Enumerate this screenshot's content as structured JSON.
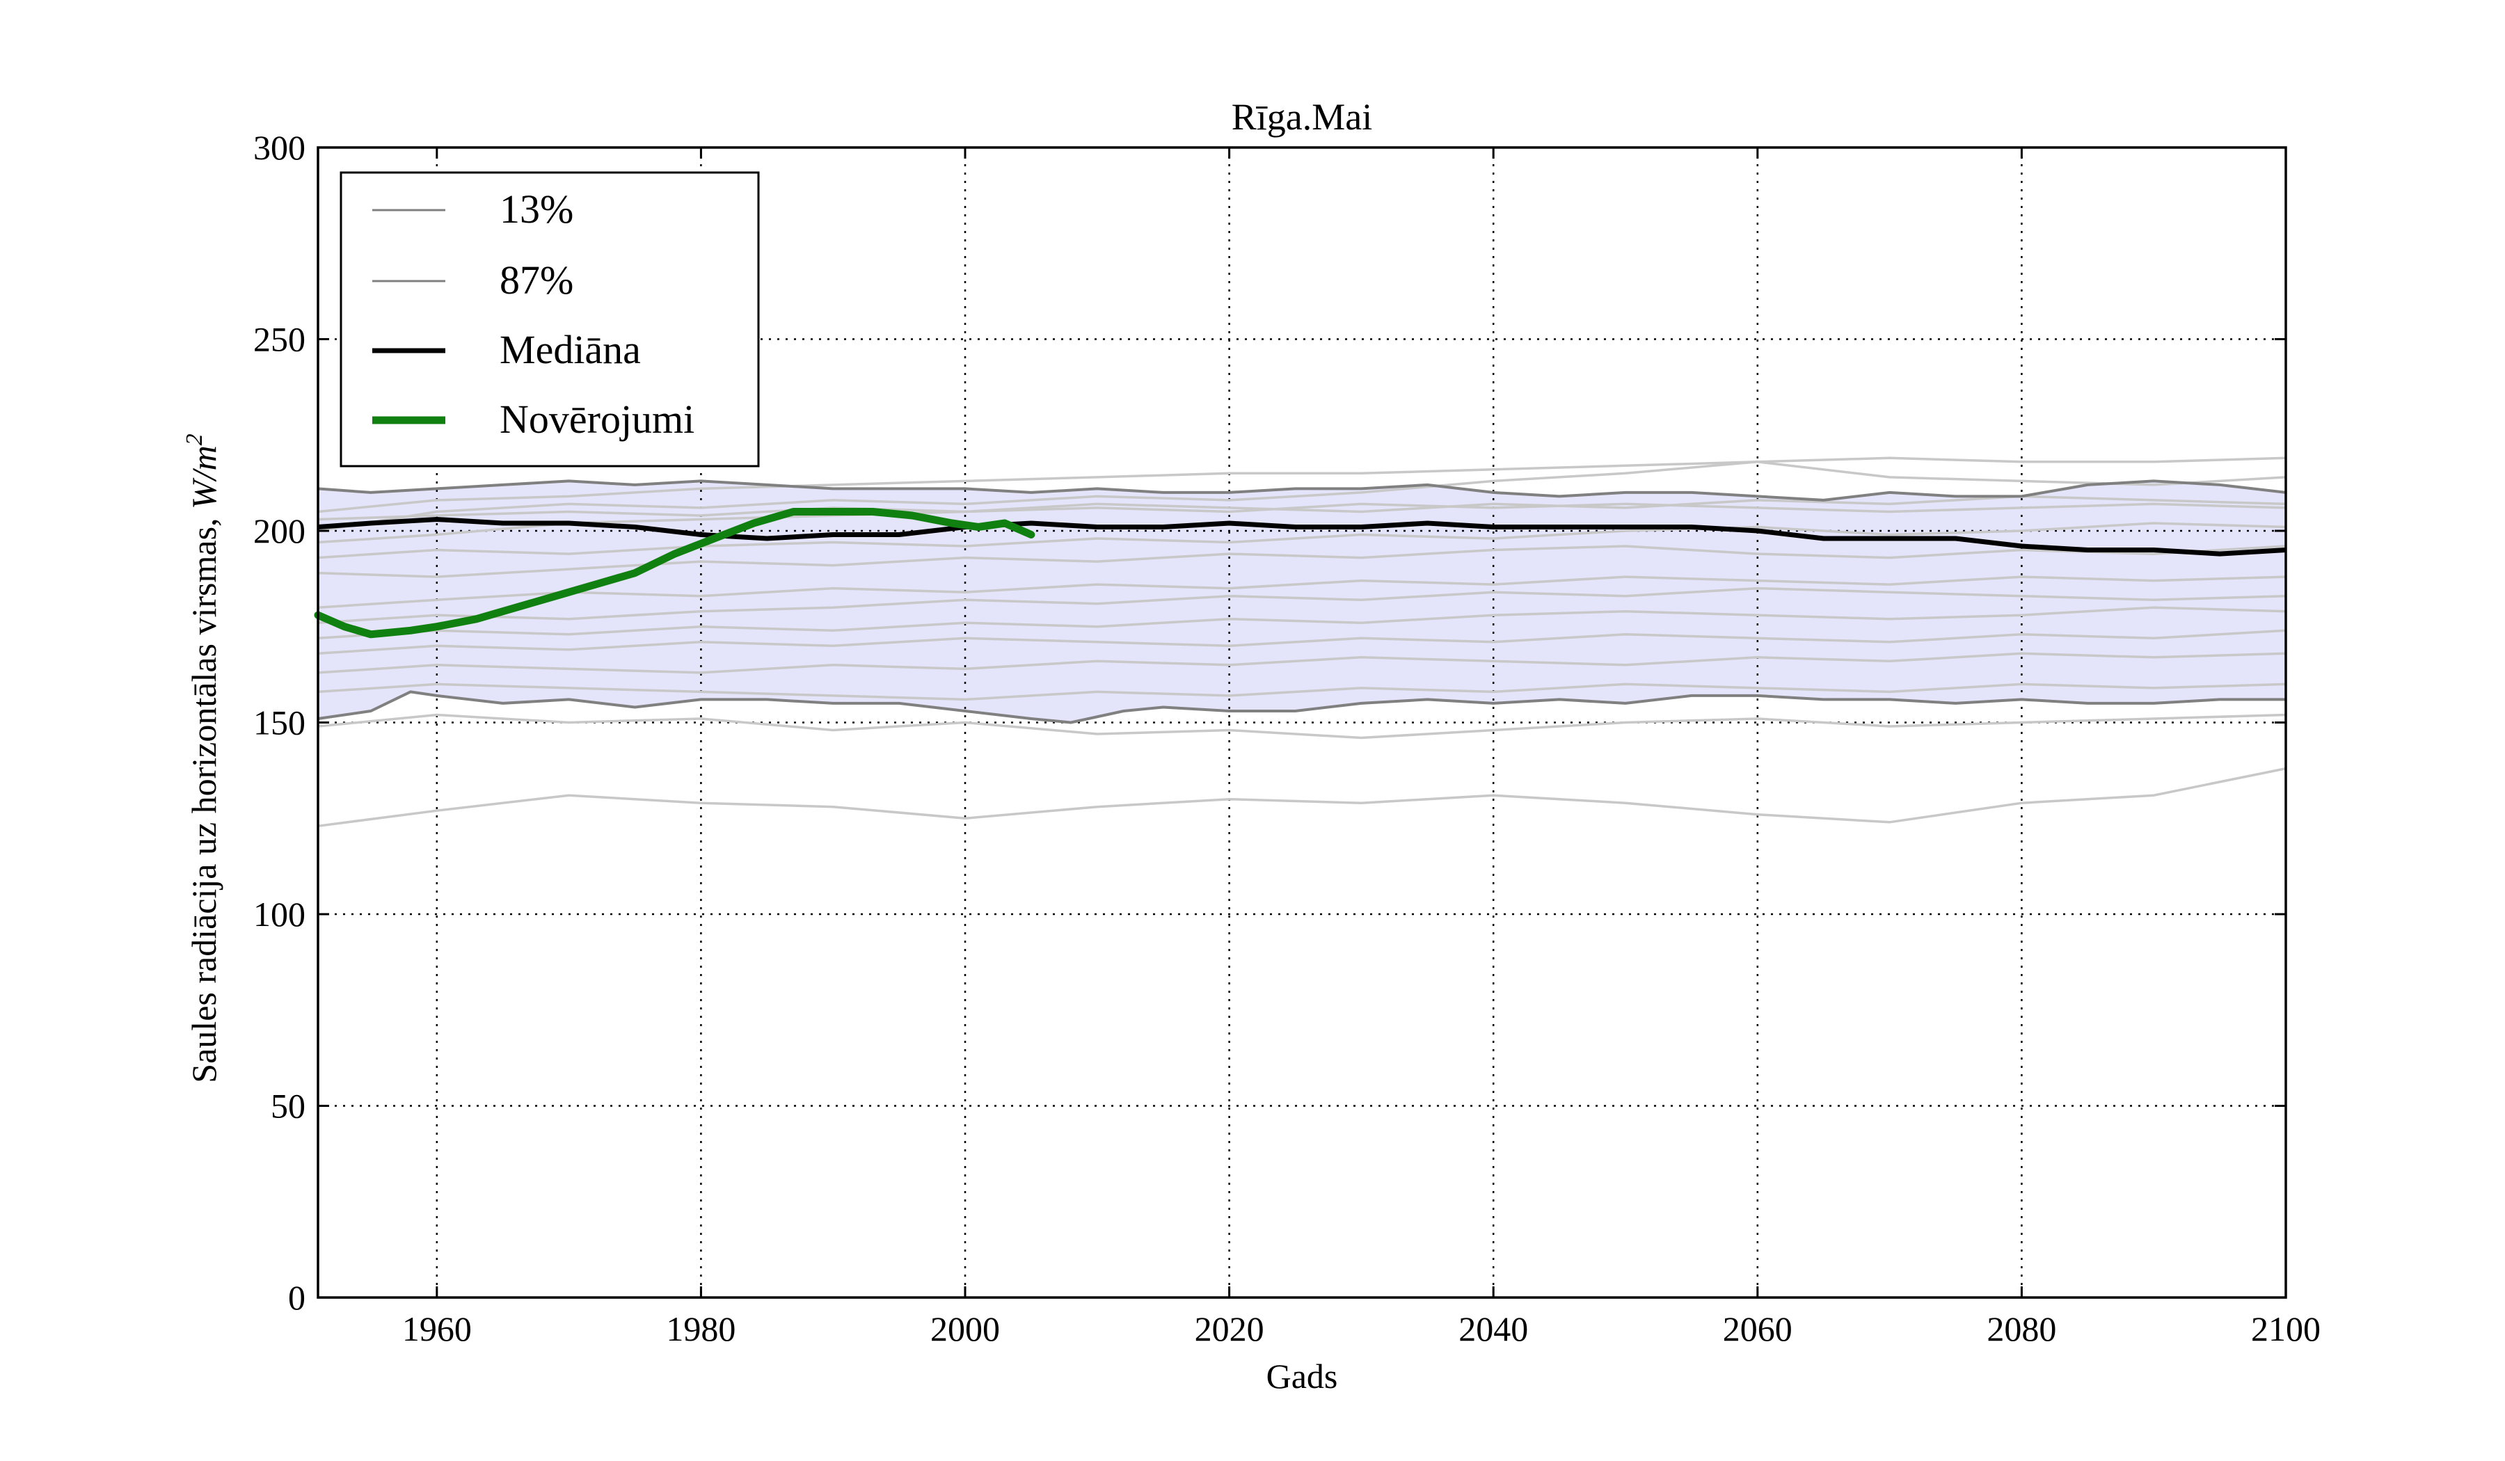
{
  "chart_data": {
    "type": "line",
    "title": "Rīga.Mai",
    "xlabel": "Gads",
    "ylabel": "Saules radiācija uz horizontālas virsmas, W/m²",
    "ylabel_text": "Saules radiācija uz horizontālas virsmas, ",
    "ylabel_unit_base": "W/m",
    "ylabel_unit_exp": "2",
    "xlim": [
      1951,
      2100
    ],
    "ylim": [
      0,
      300
    ],
    "xticks": [
      "1960",
      "1980",
      "2000",
      "2020",
      "2040",
      "2060",
      "2080",
      "2100"
    ],
    "yticks": [
      "0",
      "50",
      "100",
      "150",
      "200",
      "250",
      "300"
    ],
    "grid": true,
    "legend_position": "top-left",
    "legend": [
      "13%",
      "87%",
      "Mediāna",
      "Novērojumi"
    ],
    "colors": {
      "band": "#e4e4fb",
      "ensemble": "#c8c8c8",
      "percentile": "#808080",
      "median": "#000000",
      "observations": "#108010"
    },
    "series": [
      {
        "name": "13%",
        "x": [
          1951,
          1955,
          1958,
          1960,
          1965,
          1970,
          1975,
          1980,
          1985,
          1990,
          1995,
          2000,
          2005,
          2008,
          2012,
          2015,
          2020,
          2025,
          2030,
          2035,
          2040,
          2045,
          2050,
          2055,
          2060,
          2065,
          2070,
          2075,
          2080,
          2085,
          2090,
          2095,
          2100
        ],
        "y": [
          151,
          153,
          158,
          157,
          155,
          156,
          154,
          156,
          156,
          155,
          155,
          153,
          151,
          150,
          153,
          154,
          153,
          153,
          155,
          156,
          155,
          156,
          155,
          157,
          157,
          156,
          156,
          155,
          156,
          155,
          155,
          156,
          156
        ]
      },
      {
        "name": "87%",
        "x": [
          1951,
          1955,
          1960,
          1965,
          1970,
          1975,
          1980,
          1985,
          1990,
          1995,
          2000,
          2005,
          2010,
          2015,
          2020,
          2025,
          2030,
          2035,
          2040,
          2045,
          2050,
          2055,
          2060,
          2065,
          2070,
          2075,
          2080,
          2085,
          2090,
          2095,
          2100
        ],
        "y": [
          211,
          210,
          211,
          212,
          213,
          212,
          213,
          212,
          211,
          211,
          211,
          210,
          211,
          210,
          210,
          211,
          211,
          212,
          210,
          209,
          210,
          210,
          209,
          208,
          210,
          209,
          209,
          212,
          213,
          212,
          210
        ]
      },
      {
        "name": "Mediāna",
        "x": [
          1951,
          1955,
          1960,
          1965,
          1970,
          1975,
          1980,
          1985,
          1990,
          1995,
          2000,
          2005,
          2010,
          2015,
          2020,
          2025,
          2030,
          2035,
          2040,
          2045,
          2050,
          2055,
          2060,
          2065,
          2070,
          2075,
          2080,
          2085,
          2090,
          2095,
          2100
        ],
        "y": [
          201,
          202,
          203,
          202,
          202,
          201,
          199,
          198,
          199,
          199,
          201,
          202,
          201,
          201,
          202,
          201,
          201,
          202,
          201,
          201,
          201,
          201,
          200,
          198,
          198,
          198,
          196,
          195,
          195,
          194,
          195
        ]
      },
      {
        "name": "Novērojumi",
        "x": [
          1951,
          1953,
          1955,
          1958,
          1960,
          1963,
          1966,
          1969,
          1972,
          1975,
          1978,
          1981,
          1984,
          1987,
          1990,
          1993,
          1996,
          1999,
          2001,
          2003,
          2005
        ],
        "y": [
          178,
          175,
          173,
          174,
          175,
          177,
          180,
          183,
          186,
          189,
          194,
          198,
          202,
          205,
          205,
          205,
          204,
          202,
          201,
          202,
          199
        ]
      }
    ],
    "ensemble_members": [
      {
        "x": [
          1951,
          1960,
          1970,
          1980,
          1990,
          2000,
          2010,
          2020,
          2030,
          2040,
          2050,
          2060,
          2070,
          2080,
          2090,
          2100
        ],
        "y": [
          123,
          127,
          131,
          129,
          128,
          125,
          128,
          130,
          129,
          131,
          129,
          126,
          124,
          129,
          131,
          138
        ]
      },
      {
        "x": [
          1951,
          1960,
          1970,
          1980,
          1990,
          2000,
          2010,
          2020,
          2030,
          2040,
          2050,
          2060,
          2070,
          2080,
          2090,
          2100
        ],
        "y": [
          149,
          152,
          150,
          151,
          148,
          150,
          147,
          148,
          146,
          148,
          150,
          151,
          149,
          150,
          151,
          152
        ]
      },
      {
        "x": [
          1951,
          1960,
          1970,
          1980,
          1990,
          2000,
          2010,
          2020,
          2030,
          2040,
          2050,
          2060,
          2070,
          2080,
          2090,
          2100
        ],
        "y": [
          205,
          208,
          209,
          211,
          212,
          213,
          214,
          215,
          215,
          216,
          217,
          218,
          219,
          218,
          218,
          219
        ]
      },
      {
        "x": [
          1951,
          1960,
          1970,
          1980,
          1990,
          2000,
          2010,
          2020,
          2030,
          2040,
          2050,
          2060,
          2070,
          2080,
          2090,
          2100
        ],
        "y": [
          200,
          205,
          207,
          206,
          208,
          207,
          209,
          208,
          210,
          213,
          215,
          218,
          214,
          213,
          212,
          214
        ]
      },
      {
        "x": [
          1951,
          1960,
          1970,
          1980,
          1990,
          2000,
          2010,
          2020,
          2030,
          2040,
          2050,
          2060,
          2070,
          2080,
          2090,
          2100
        ],
        "y": [
          197,
          199,
          202,
          203,
          204,
          205,
          206,
          205,
          207,
          206,
          207,
          206,
          205,
          206,
          207,
          206
        ]
      },
      {
        "x": [
          1951,
          1960,
          1970,
          1980,
          1990,
          2000,
          2010,
          2020,
          2030,
          2040,
          2050,
          2060,
          2070,
          2080,
          2090,
          2100
        ],
        "y": [
          193,
          195,
          194,
          196,
          197,
          196,
          198,
          197,
          199,
          198,
          200,
          201,
          199,
          200,
          202,
          201
        ]
      },
      {
        "x": [
          1951,
          1960,
          1970,
          1980,
          1990,
          2000,
          2010,
          2020,
          2030,
          2040,
          2050,
          2060,
          2070,
          2080,
          2090,
          2100
        ],
        "y": [
          189,
          188,
          190,
          192,
          191,
          193,
          192,
          194,
          193,
          195,
          196,
          194,
          193,
          195,
          194,
          196
        ]
      },
      {
        "x": [
          1951,
          1960,
          1970,
          1980,
          1990,
          2000,
          2010,
          2020,
          2030,
          2040,
          2050,
          2060,
          2070,
          2080,
          2090,
          2100
        ],
        "y": [
          180,
          182,
          184,
          183,
          185,
          184,
          186,
          185,
          187,
          186,
          188,
          187,
          186,
          188,
          187,
          188
        ]
      },
      {
        "x": [
          1951,
          1960,
          1970,
          1980,
          1990,
          2000,
          2010,
          2020,
          2030,
          2040,
          2050,
          2060,
          2070,
          2080,
          2090,
          2100
        ],
        "y": [
          176,
          178,
          177,
          179,
          180,
          182,
          181,
          183,
          182,
          184,
          183,
          185,
          184,
          183,
          182,
          183
        ]
      },
      {
        "x": [
          1951,
          1960,
          1970,
          1980,
          1990,
          2000,
          2010,
          2020,
          2030,
          2040,
          2050,
          2060,
          2070,
          2080,
          2090,
          2100
        ],
        "y": [
          172,
          174,
          173,
          175,
          174,
          176,
          175,
          177,
          176,
          178,
          179,
          178,
          177,
          178,
          180,
          179
        ]
      },
      {
        "x": [
          1951,
          1960,
          1970,
          1980,
          1990,
          2000,
          2010,
          2020,
          2030,
          2040,
          2050,
          2060,
          2070,
          2080,
          2090,
          2100
        ],
        "y": [
          168,
          170,
          169,
          171,
          170,
          172,
          171,
          170,
          172,
          171,
          173,
          172,
          171,
          173,
          172,
          174
        ]
      },
      {
        "x": [
          1951,
          1960,
          1970,
          1980,
          1990,
          2000,
          2010,
          2020,
          2030,
          2040,
          2050,
          2060,
          2070,
          2080,
          2090,
          2100
        ],
        "y": [
          163,
          165,
          164,
          163,
          165,
          164,
          166,
          165,
          167,
          166,
          165,
          167,
          166,
          168,
          167,
          168
        ]
      },
      {
        "x": [
          1951,
          1960,
          1970,
          1980,
          1990,
          2000,
          2010,
          2020,
          2030,
          2040,
          2050,
          2060,
          2070,
          2080,
          2090,
          2100
        ],
        "y": [
          158,
          160,
          159,
          158,
          157,
          156,
          158,
          157,
          159,
          158,
          160,
          159,
          158,
          160,
          159,
          160
        ]
      },
      {
        "x": [
          1951,
          1960,
          1970,
          1980,
          1990,
          2000,
          2010,
          2020,
          2030,
          2040,
          2050,
          2060,
          2070,
          2080,
          2090,
          2100
        ],
        "y": [
          203,
          204,
          205,
          204,
          206,
          205,
          207,
          206,
          205,
          207,
          206,
          208,
          207,
          209,
          208,
          207
        ]
      }
    ]
  }
}
